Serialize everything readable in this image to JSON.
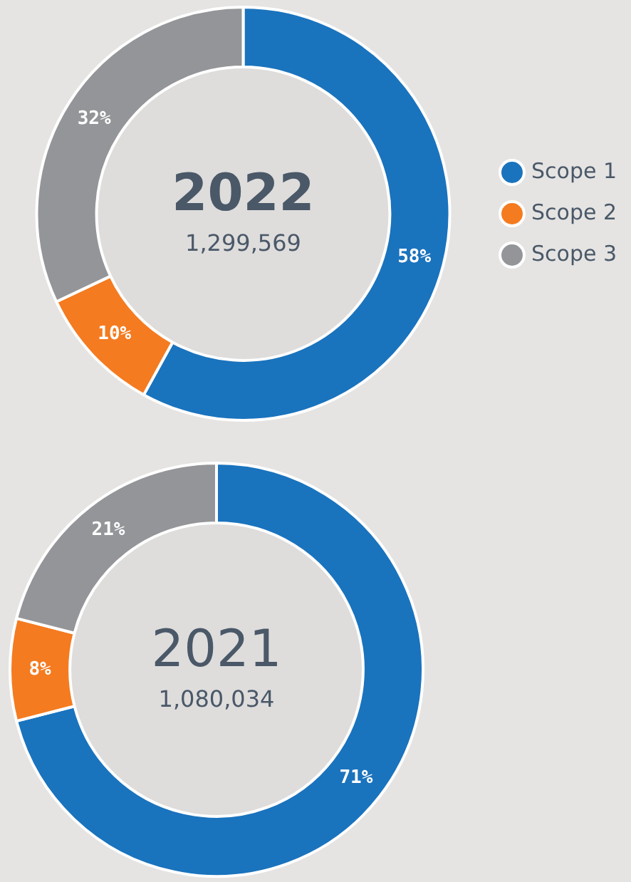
{
  "chart_data": [
    {
      "type": "donut",
      "title": "2022",
      "subtitle": "1,299,569",
      "categories": [
        "Scope 1",
        "Scope 2",
        "Scope 3"
      ],
      "values": [
        58,
        10,
        32
      ],
      "colors": [
        "#1a73bd",
        "#f47b20",
        "#949598"
      ],
      "value_labels": [
        "58%",
        "10%",
        "32%"
      ],
      "legend": "right"
    },
    {
      "type": "donut",
      "title": "2021",
      "subtitle": "1,080,034",
      "categories": [
        null,
        null,
        null
      ],
      "values": [
        71,
        8,
        21
      ],
      "colors": [
        "#1a73bd",
        "#f47b20",
        "#949598"
      ],
      "value_labels": [
        "71%",
        "8%",
        "21%"
      ]
    }
  ]
}
